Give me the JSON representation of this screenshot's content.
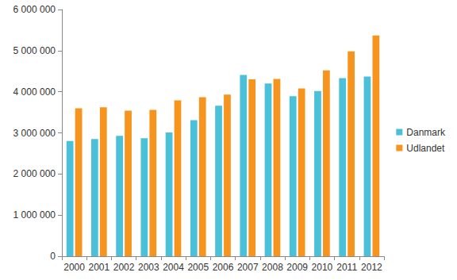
{
  "chart_data": {
    "type": "bar",
    "categories": [
      "2000",
      "2001",
      "2002",
      "2003",
      "2004",
      "2005",
      "2006",
      "2007",
      "2008",
      "2009",
      "2010",
      "2011",
      "2012"
    ],
    "series": [
      {
        "name": "Danmark",
        "color": "#4bc0d9",
        "values": [
          2800000,
          2850000,
          2930000,
          2870000,
          3010000,
          3310000,
          3660000,
          4410000,
          4200000,
          3890000,
          4020000,
          4330000,
          4370000
        ]
      },
      {
        "name": "Udlandet",
        "color": "#f7941d",
        "values": [
          3600000,
          3620000,
          3540000,
          3560000,
          3790000,
          3870000,
          3930000,
          4300000,
          4310000,
          4080000,
          4520000,
          4980000,
          5370000
        ]
      }
    ],
    "ylim": [
      0,
      6000000
    ],
    "yticks": [
      0,
      {
        "value": 1000000,
        "label": "1 000 000"
      },
      {
        "value": 2000000,
        "label": "2 000 000"
      },
      {
        "value": 3000000,
        "label": "3 000 000"
      },
      {
        "value": 4000000,
        "label": "4 000 000"
      },
      {
        "value": 5000000,
        "label": "5 000 000"
      },
      {
        "value": 6000000,
        "label": "6 000 000"
      }
    ],
    "grid": false,
    "legend": "right"
  }
}
